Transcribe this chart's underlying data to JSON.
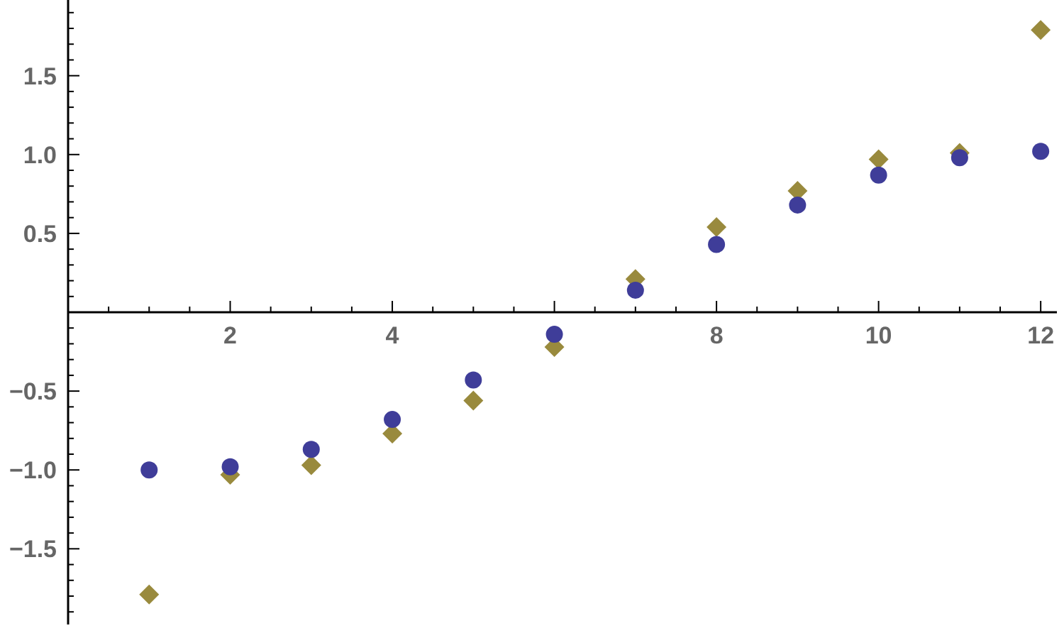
{
  "chart_data": {
    "type": "scatter",
    "x": [
      1,
      2,
      3,
      4,
      5,
      6,
      7,
      8,
      9,
      10,
      11,
      12
    ],
    "series": [
      {
        "color": "#3f3d99",
        "marker": "circle",
        "values": [
          -1.0,
          -0.98,
          -0.87,
          -0.68,
          -0.43,
          -0.14,
          0.14,
          0.43,
          0.68,
          0.87,
          0.98,
          1.02
        ]
      },
      {
        "color": "#998a3d",
        "marker": "diamond",
        "values": [
          -1.79,
          -1.03,
          -0.97,
          -0.77,
          -0.56,
          -0.22,
          0.21,
          0.54,
          0.77,
          0.97,
          1.01,
          1.79
        ]
      }
    ],
    "xlim": [
      0,
      12.2
    ],
    "ylim": [
      -1.98,
      1.98
    ],
    "xticks": [
      {
        "value": 0.5,
        "label": null
      },
      {
        "value": 1,
        "label": null
      },
      {
        "value": 1.5,
        "label": null
      },
      2,
      {
        "value": 2.5,
        "label": null
      },
      {
        "value": 3,
        "label": null
      },
      {
        "value": 3.5,
        "label": null
      },
      4,
      {
        "value": 4.5,
        "label": null
      },
      {
        "value": 5,
        "label": null
      },
      {
        "value": 5.5,
        "label": null
      },
      6,
      {
        "value": 6.5,
        "label": null
      },
      {
        "value": 7,
        "label": null
      },
      {
        "value": 7.5,
        "label": null
      },
      8,
      {
        "value": 8.5,
        "label": null
      },
      {
        "value": 9,
        "label": null
      },
      {
        "value": 9.5,
        "label": null
      },
      10,
      {
        "value": 10.5,
        "label": null
      },
      {
        "value": 11,
        "label": null
      },
      {
        "value": 11.5,
        "label": null
      },
      12
    ],
    "yticks": [
      {
        "value": -1.9,
        "label": null
      },
      {
        "value": -1.8,
        "label": null
      },
      {
        "value": -1.7,
        "label": null
      },
      {
        "value": -1.6,
        "label": null
      },
      {
        "value": -1.5,
        "label": "−1.5"
      },
      {
        "value": -1.4,
        "label": null
      },
      {
        "value": -1.3,
        "label": null
      },
      {
        "value": -1.2,
        "label": null
      },
      {
        "value": -1.1,
        "label": null
      },
      {
        "value": -1.0,
        "label": "−1.0"
      },
      {
        "value": -0.9,
        "label": null
      },
      {
        "value": -0.8,
        "label": null
      },
      {
        "value": -0.7,
        "label": null
      },
      {
        "value": -0.6,
        "label": null
      },
      {
        "value": -0.5,
        "label": "−0.5"
      },
      {
        "value": -0.4,
        "label": null
      },
      {
        "value": -0.3,
        "label": null
      },
      {
        "value": -0.2,
        "label": null
      },
      {
        "value": -0.1,
        "label": null
      },
      {
        "value": 0.1,
        "label": null
      },
      {
        "value": 0.2,
        "label": null
      },
      {
        "value": 0.3,
        "label": null
      },
      {
        "value": 0.4,
        "label": null
      },
      0.5,
      {
        "value": 0.6,
        "label": null
      },
      {
        "value": 0.7,
        "label": null
      },
      {
        "value": 0.8,
        "label": null
      },
      {
        "value": 0.9,
        "label": null
      },
      {
        "value": 1.0,
        "label": "1.0"
      },
      {
        "value": 1.1,
        "label": null
      },
      {
        "value": 1.2,
        "label": null
      },
      {
        "value": 1.3,
        "label": null
      },
      {
        "value": 1.4,
        "label": null
      },
      1.5,
      {
        "value": 1.6,
        "label": null
      },
      {
        "value": 1.7,
        "label": null
      },
      {
        "value": 1.8,
        "label": null
      },
      {
        "value": 1.9,
        "label": null
      }
    ],
    "grid": false
  }
}
